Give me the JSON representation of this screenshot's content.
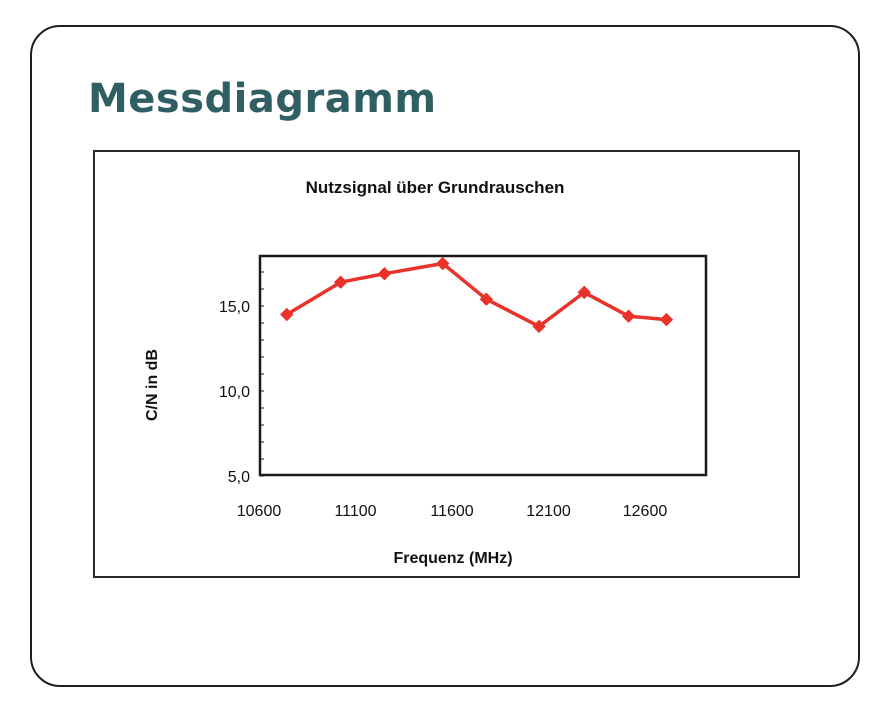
{
  "slide": {
    "title": "Messdiagramm",
    "title_color": "#2f5f62"
  },
  "chart_data": {
    "type": "line",
    "title": "Nutzsignal über Grundrauschen",
    "xlabel": "Frequenz (MHz)",
    "ylabel": "C/N in dB",
    "xlim": [
      10600,
      12950
    ],
    "ylim": [
      5.0,
      17.8
    ],
    "x_ticks": [
      10600,
      11100,
      11600,
      12100,
      12600
    ],
    "x_tick_labels": [
      "10600",
      "11100",
      "11600",
      "12100",
      "12600"
    ],
    "y_ticks": [
      5.0,
      10.0,
      15.0
    ],
    "y_tick_labels": [
      "5,0",
      "10,0",
      "15,0"
    ],
    "grid": false,
    "legend": null,
    "series": [
      {
        "name": "C/N",
        "color": "#e8322a",
        "marker": "diamond",
        "x": [
          10744,
          11023,
          11250,
          11552,
          11778,
          12051,
          12285,
          12515,
          12711
        ],
        "values": [
          14.5,
          16.4,
          16.9,
          17.5,
          15.4,
          13.8,
          15.8,
          14.4,
          14.2
        ]
      }
    ]
  }
}
